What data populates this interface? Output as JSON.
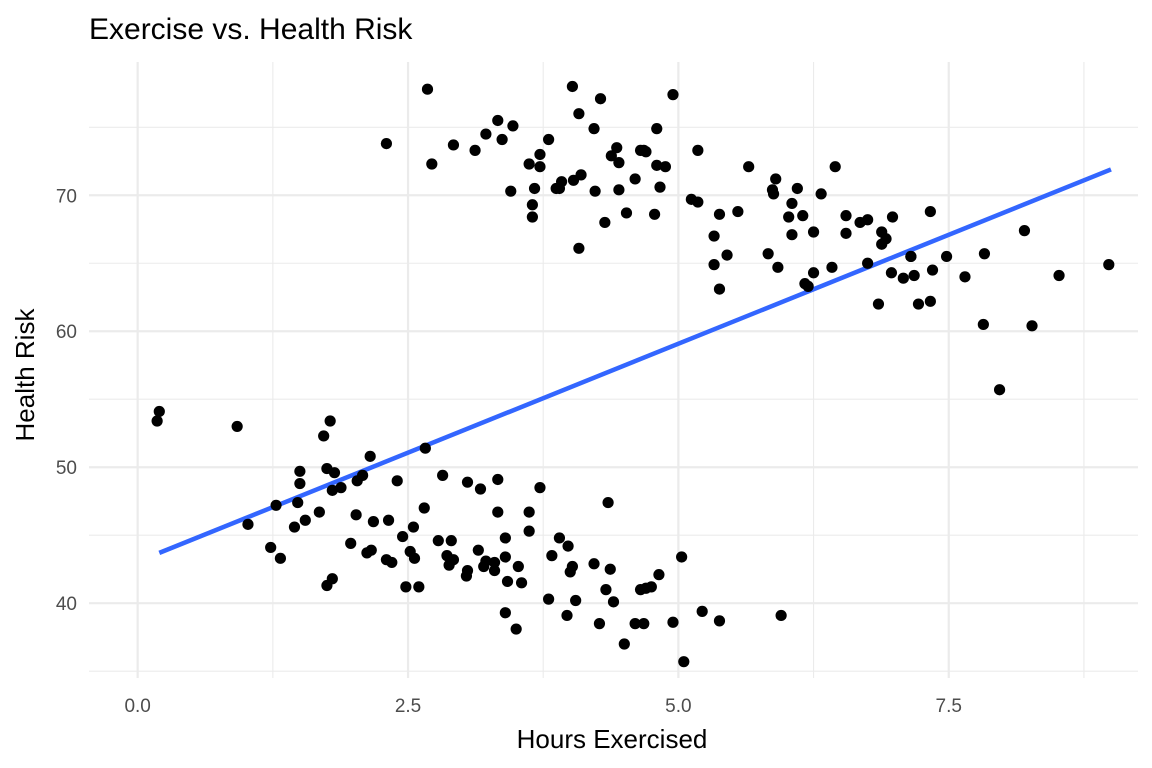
{
  "chart_data": {
    "type": "scatter",
    "title": "Exercise vs. Health Risk",
    "xlabel": "Hours Exercised",
    "ylabel": "Health Risk",
    "xlim": [
      -0.45,
      9.25
    ],
    "ylim": [
      34.5,
      79.8
    ],
    "x_ticks": [
      0.0,
      2.5,
      5.0,
      7.5
    ],
    "x_tick_labels": [
      "0.0",
      "2.5",
      "5.0",
      "7.5"
    ],
    "x_minor_ticks": [
      1.25,
      3.75,
      6.25,
      8.75
    ],
    "y_ticks": [
      40,
      50,
      60,
      70
    ],
    "y_tick_labels": [
      "40",
      "50",
      "60",
      "70"
    ],
    "y_minor_ticks": [
      35,
      45,
      55,
      65,
      75
    ],
    "grid": true,
    "point_color": "#000000",
    "trend_line": {
      "type": "linear",
      "color": "#3366FF",
      "x": [
        0.2,
        9.0
      ],
      "y": [
        43.7,
        71.9
      ]
    },
    "points": [
      [
        0.18,
        53.4
      ],
      [
        0.2,
        54.1
      ],
      [
        0.92,
        53.0
      ],
      [
        1.02,
        45.8
      ],
      [
        1.23,
        44.1
      ],
      [
        1.28,
        47.2
      ],
      [
        1.32,
        43.3
      ],
      [
        1.45,
        45.6
      ],
      [
        1.48,
        47.4
      ],
      [
        1.5,
        48.8
      ],
      [
        1.5,
        49.7
      ],
      [
        1.55,
        46.1
      ],
      [
        1.68,
        46.7
      ],
      [
        1.72,
        52.3
      ],
      [
        1.75,
        49.9
      ],
      [
        1.75,
        41.3
      ],
      [
        1.78,
        53.4
      ],
      [
        1.8,
        48.3
      ],
      [
        1.8,
        41.8
      ],
      [
        1.82,
        49.6
      ],
      [
        1.88,
        48.5
      ],
      [
        1.97,
        44.4
      ],
      [
        2.02,
        46.5
      ],
      [
        2.03,
        49.0
      ],
      [
        2.08,
        49.4
      ],
      [
        2.12,
        43.7
      ],
      [
        2.15,
        50.8
      ],
      [
        2.16,
        43.9
      ],
      [
        2.18,
        46.0
      ],
      [
        2.3,
        43.2
      ],
      [
        2.32,
        46.1
      ],
      [
        2.35,
        43.0
      ],
      [
        2.4,
        49.0
      ],
      [
        2.45,
        44.9
      ],
      [
        2.48,
        41.2
      ],
      [
        2.52,
        43.8
      ],
      [
        2.55,
        45.6
      ],
      [
        2.56,
        43.3
      ],
      [
        2.6,
        41.2
      ],
      [
        2.65,
        47.0
      ],
      [
        2.66,
        51.4
      ],
      [
        2.78,
        44.6
      ],
      [
        2.82,
        49.4
      ],
      [
        2.86,
        43.5
      ],
      [
        2.88,
        42.8
      ],
      [
        2.9,
        44.6
      ],
      [
        2.92,
        43.2
      ],
      [
        3.04,
        42.0
      ],
      [
        3.05,
        48.9
      ],
      [
        3.05,
        42.4
      ],
      [
        3.15,
        43.9
      ],
      [
        3.17,
        48.4
      ],
      [
        3.2,
        42.7
      ],
      [
        3.22,
        43.1
      ],
      [
        3.3,
        42.4
      ],
      [
        3.3,
        43.0
      ],
      [
        3.33,
        46.7
      ],
      [
        3.33,
        49.1
      ],
      [
        3.4,
        43.4
      ],
      [
        3.4,
        44.8
      ],
      [
        3.4,
        39.3
      ],
      [
        3.42,
        41.6
      ],
      [
        3.5,
        38.1
      ],
      [
        3.52,
        42.7
      ],
      [
        3.55,
        41.5
      ],
      [
        3.62,
        45.3
      ],
      [
        3.62,
        46.7
      ],
      [
        3.72,
        48.5
      ],
      [
        3.8,
        40.3
      ],
      [
        3.83,
        43.5
      ],
      [
        3.9,
        44.8
      ],
      [
        3.97,
        39.1
      ],
      [
        3.98,
        44.2
      ],
      [
        4.0,
        42.3
      ],
      [
        4.02,
        42.7
      ],
      [
        4.05,
        40.2
      ],
      [
        4.22,
        42.9
      ],
      [
        4.27,
        38.5
      ],
      [
        4.33,
        41.0
      ],
      [
        4.35,
        47.4
      ],
      [
        4.37,
        42.5
      ],
      [
        4.4,
        40.1
      ],
      [
        4.5,
        37.0
      ],
      [
        4.6,
        38.5
      ],
      [
        4.65,
        41.0
      ],
      [
        4.68,
        38.5
      ],
      [
        4.7,
        41.1
      ],
      [
        4.75,
        41.2
      ],
      [
        4.82,
        42.1
      ],
      [
        4.95,
        38.6
      ],
      [
        5.03,
        43.4
      ],
      [
        5.05,
        35.7
      ],
      [
        5.22,
        39.4
      ],
      [
        5.38,
        38.7
      ],
      [
        5.95,
        39.1
      ],
      [
        2.3,
        73.8
      ],
      [
        2.68,
        77.8
      ],
      [
        2.72,
        72.3
      ],
      [
        2.92,
        73.7
      ],
      [
        3.12,
        73.3
      ],
      [
        3.22,
        74.5
      ],
      [
        3.33,
        75.5
      ],
      [
        3.37,
        74.1
      ],
      [
        3.45,
        70.3
      ],
      [
        3.47,
        75.1
      ],
      [
        3.62,
        72.3
      ],
      [
        3.65,
        69.3
      ],
      [
        3.65,
        68.4
      ],
      [
        3.67,
        70.5
      ],
      [
        3.72,
        72.1
      ],
      [
        3.72,
        73.0
      ],
      [
        3.8,
        74.1
      ],
      [
        3.87,
        70.5
      ],
      [
        3.9,
        70.5
      ],
      [
        3.92,
        71.0
      ],
      [
        4.02,
        78.0
      ],
      [
        4.03,
        71.1
      ],
      [
        4.08,
        76.0
      ],
      [
        4.08,
        66.1
      ],
      [
        4.1,
        71.5
      ],
      [
        4.22,
        74.9
      ],
      [
        4.23,
        70.3
      ],
      [
        4.28,
        77.1
      ],
      [
        4.32,
        68.0
      ],
      [
        4.38,
        72.9
      ],
      [
        4.43,
        73.5
      ],
      [
        4.45,
        70.4
      ],
      [
        4.45,
        72.4
      ],
      [
        4.52,
        68.7
      ],
      [
        4.6,
        71.2
      ],
      [
        4.65,
        73.3
      ],
      [
        4.68,
        73.3
      ],
      [
        4.7,
        73.2
      ],
      [
        4.78,
        68.6
      ],
      [
        4.8,
        74.9
      ],
      [
        4.8,
        72.2
      ],
      [
        4.83,
        70.6
      ],
      [
        4.88,
        72.1
      ],
      [
        4.95,
        77.4
      ],
      [
        5.12,
        69.7
      ],
      [
        5.18,
        73.3
      ],
      [
        5.18,
        69.5
      ],
      [
        5.33,
        67.0
      ],
      [
        5.33,
        64.9
      ],
      [
        5.38,
        63.1
      ],
      [
        5.38,
        68.6
      ],
      [
        5.45,
        65.6
      ],
      [
        5.55,
        68.8
      ],
      [
        5.65,
        72.1
      ],
      [
        5.83,
        65.7
      ],
      [
        5.87,
        70.4
      ],
      [
        5.88,
        70.1
      ],
      [
        5.9,
        71.2
      ],
      [
        5.92,
        64.7
      ],
      [
        6.02,
        68.4
      ],
      [
        6.05,
        67.1
      ],
      [
        6.05,
        69.4
      ],
      [
        6.1,
        70.5
      ],
      [
        6.15,
        68.5
      ],
      [
        6.17,
        63.5
      ],
      [
        6.2,
        63.3
      ],
      [
        6.25,
        67.3
      ],
      [
        6.25,
        64.3
      ],
      [
        6.32,
        70.1
      ],
      [
        6.42,
        64.7
      ],
      [
        6.45,
        72.1
      ],
      [
        6.55,
        68.5
      ],
      [
        6.55,
        67.2
      ],
      [
        6.68,
        68.0
      ],
      [
        6.75,
        65.0
      ],
      [
        6.75,
        68.2
      ],
      [
        6.85,
        62.0
      ],
      [
        6.88,
        67.3
      ],
      [
        6.88,
        66.4
      ],
      [
        6.92,
        66.8
      ],
      [
        6.97,
        64.3
      ],
      [
        6.98,
        68.4
      ],
      [
        7.08,
        63.9
      ],
      [
        7.15,
        65.5
      ],
      [
        7.15,
        65.5
      ],
      [
        7.18,
        64.1
      ],
      [
        7.22,
        62.0
      ],
      [
        7.33,
        68.8
      ],
      [
        7.33,
        62.2
      ],
      [
        7.35,
        64.5
      ],
      [
        7.48,
        65.5
      ],
      [
        7.65,
        64.0
      ],
      [
        7.82,
        60.5
      ],
      [
        7.83,
        65.7
      ],
      [
        7.97,
        55.7
      ],
      [
        8.2,
        67.4
      ],
      [
        8.27,
        60.4
      ],
      [
        8.52,
        64.1
      ],
      [
        8.98,
        64.9
      ]
    ]
  }
}
